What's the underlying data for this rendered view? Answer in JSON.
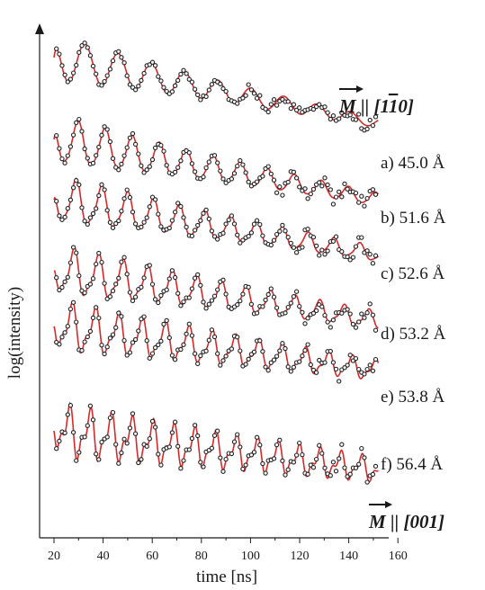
{
  "chart_data": {
    "type": "line",
    "xlabel": "time [ns]",
    "ylabel": "log(intensity)",
    "xlim": [
      20,
      160
    ],
    "x_ticks": [
      20,
      40,
      60,
      80,
      100,
      120,
      140,
      160
    ],
    "grid": false,
    "annotations": {
      "top": {
        "vector": "M",
        "text": "|| [1",
        "overbar": "1",
        "tail": "0]"
      },
      "bottom": {
        "vector": "M",
        "text": "|| [001]"
      }
    },
    "series": [
      {
        "name": "a) 45.0 Å",
        "beat_period_ns": 13.5,
        "beat_mod": 0.0,
        "decay": 0.012,
        "noise_from_ns": 95
      },
      {
        "name": "b) 51.6 Å",
        "beat_period_ns": 11.0,
        "beat_mod": 0.25,
        "decay": 0.01,
        "noise_from_ns": 110
      },
      {
        "name": "c) 52.6 Å",
        "beat_period_ns": 10.5,
        "beat_mod": 0.45,
        "decay": 0.009,
        "noise_from_ns": 115
      },
      {
        "name": "d) 53.2 Å",
        "beat_period_ns": 10.0,
        "beat_mod": 0.6,
        "decay": 0.008,
        "noise_from_ns": 118
      },
      {
        "name": "e) 53.8 Å",
        "beat_period_ns": 9.5,
        "beat_mod": 0.75,
        "decay": 0.007,
        "noise_from_ns": 122
      },
      {
        "name": "f) 56.4 Å",
        "beat_period_ns": 8.5,
        "beat_mod": 0.9,
        "decay": 0.006,
        "noise_from_ns": 125
      }
    ],
    "colors": {
      "fit": "#d42a2a",
      "data": "#222222",
      "axis": "#1a1a1a"
    }
  }
}
